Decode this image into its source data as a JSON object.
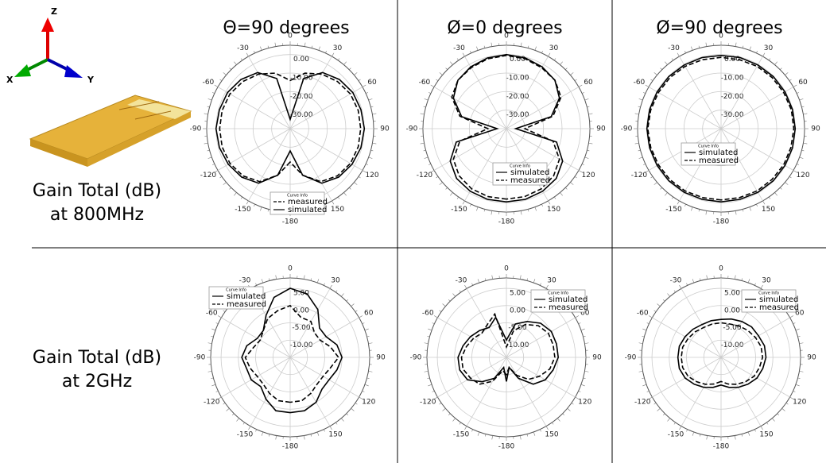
{
  "row_labels": [
    [
      "Gain Total (dB)",
      "at 800MHz"
    ],
    [
      "Gain Total (dB)",
      "at 2GHz"
    ]
  ],
  "axes_icon": {
    "z": "Z",
    "x": "X",
    "y": "Y"
  },
  "chart_data": [
    {
      "type": "polar",
      "title": "Θ=90 degrees",
      "legend_title": "Curve Info",
      "x": [
        -180,
        -165,
        -150,
        -135,
        -120,
        -105,
        -90,
        -75,
        -60,
        -45,
        -30,
        -15,
        0,
        15,
        30,
        45,
        60,
        75,
        90,
        105,
        120,
        135,
        150,
        165
      ],
      "rlim": [
        -40,
        5
      ],
      "rticks": [
        {
          "value": 0,
          "label": "0.00"
        },
        {
          "value": -10,
          "label": "-10.00"
        },
        {
          "value": -20,
          "label": "-20.00"
        },
        {
          "value": -30,
          "label": "-30.00"
        }
      ],
      "angle_ticks": [
        0,
        30,
        60,
        90,
        120,
        150,
        -180,
        -150,
        -120,
        -90,
        -60,
        -30
      ],
      "series": [
        {
          "name": "measured",
          "color": "#000000",
          "dashed": true,
          "values": [
            -22,
            -14,
            -7,
            -4,
            -2.5,
            -2,
            -2,
            -2,
            -2.5,
            -4,
            -6,
            -9,
            -14,
            -9,
            -6,
            -4,
            -2.5,
            -2,
            -2,
            -2,
            -2.5,
            -4,
            -7,
            -14
          ]
        },
        {
          "name": "simulated",
          "color": "#000000",
          "dashed": false,
          "values": [
            -28,
            -14,
            -6,
            -3,
            -1.5,
            -0.5,
            0,
            -0.5,
            -1,
            -2.5,
            -5,
            -12,
            -35,
            -12,
            -5,
            -2.5,
            -1,
            -0.5,
            0,
            -0.5,
            -1.5,
            -3,
            -6,
            -14
          ]
        }
      ]
    },
    {
      "type": "polar",
      "title": "Ø=0 degrees",
      "legend_title": "Curve Info",
      "x": [
        -180,
        -165,
        -150,
        -135,
        -120,
        -105,
        -90,
        -75,
        -60,
        -45,
        -30,
        -15,
        0,
        15,
        30,
        45,
        60,
        75,
        90,
        105,
        120,
        135,
        150,
        165
      ],
      "rlim": [
        -40,
        5
      ],
      "rticks": [
        {
          "value": 0,
          "label": "0.00"
        },
        {
          "value": -10,
          "label": "-10.00"
        },
        {
          "value": -20,
          "label": "-20.00"
        },
        {
          "value": -30,
          "label": "-30.00"
        }
      ],
      "angle_ticks": [
        0,
        30,
        60,
        90,
        120,
        150,
        -180,
        -150,
        -120,
        -90,
        -60,
        -30
      ],
      "series": [
        {
          "name": "simulated",
          "color": "#000000",
          "dashed": false,
          "values": [
            -0.5,
            -0.5,
            -1,
            -2,
            -5,
            -12,
            -35,
            -15,
            -7,
            -3,
            -1.5,
            -0.5,
            0,
            -0.5,
            -1.5,
            -3,
            -7,
            -15,
            -35,
            -12,
            -5,
            -2,
            -1,
            -0.5
          ]
        },
        {
          "name": "measured",
          "color": "#000000",
          "dashed": true,
          "values": [
            -2,
            -2,
            -2.5,
            -4,
            -7,
            -14,
            -30,
            -14,
            -6,
            -3,
            -2,
            -1,
            -0.5,
            -1,
            -2,
            -3,
            -6,
            -14,
            -30,
            -14,
            -7,
            -4,
            -2.5,
            -2
          ]
        }
      ]
    },
    {
      "type": "polar",
      "title": "Ø=90 degrees",
      "legend_title": "Curve Info",
      "x": [
        -180,
        -165,
        -150,
        -135,
        -120,
        -105,
        -90,
        -75,
        -60,
        -45,
        -30,
        -15,
        0,
        15,
        30,
        45,
        60,
        75,
        90,
        105,
        120,
        135,
        150,
        165
      ],
      "rlim": [
        -40,
        5
      ],
      "rticks": [
        {
          "value": 0,
          "label": "0.00"
        },
        {
          "value": -10,
          "label": "-10.00"
        },
        {
          "value": -20,
          "label": "-20.00"
        },
        {
          "value": -30,
          "label": "-30.00"
        }
      ],
      "angle_ticks": [
        0,
        30,
        60,
        90,
        120,
        150,
        -180,
        -150,
        -120,
        -90,
        -60,
        -30
      ],
      "series": [
        {
          "name": "simulated",
          "color": "#000000",
          "dashed": false,
          "values": [
            -0.5,
            -0.5,
            -0.3,
            -0.2,
            -0.2,
            -0.1,
            0,
            -0.1,
            -0.2,
            -0.2,
            -0.3,
            -0.3,
            -0.5,
            -0.3,
            -0.3,
            -0.2,
            -0.2,
            -0.1,
            0,
            -0.1,
            -0.2,
            -0.2,
            -0.3,
            -0.5
          ]
        },
        {
          "name": "measured",
          "color": "#000000",
          "dashed": true,
          "values": [
            -1.5,
            -1.5,
            -1.2,
            -1,
            -1,
            -0.8,
            -0.5,
            -0.8,
            -1,
            -1,
            -1.2,
            -1.5,
            -1.5,
            -1.5,
            -1.2,
            -1,
            -1,
            -0.8,
            -0.8,
            -1,
            -1,
            -1.2,
            -1.2,
            -1.5
          ]
        }
      ]
    },
    {
      "type": "polar",
      "legend_title": "Curve Info",
      "x": [
        -180,
        -165,
        -150,
        -135,
        -120,
        -105,
        -90,
        -75,
        -60,
        -45,
        -30,
        -15,
        0,
        15,
        30,
        45,
        60,
        75,
        90,
        105,
        120,
        135,
        150,
        165
      ],
      "rlim": [
        -15,
        8
      ],
      "rticks": [
        {
          "value": 5,
          "label": "5.00"
        },
        {
          "value": 0,
          "label": "0.00"
        },
        {
          "value": -5,
          "label": "-5.00"
        },
        {
          "value": -10,
          "label": "-10.00"
        }
      ],
      "angle_ticks": [
        0,
        30,
        60,
        90,
        120,
        150,
        -180,
        -150,
        -120,
        -90,
        -60,
        -30
      ],
      "series": [
        {
          "name": "simulated",
          "color": "#000000",
          "dashed": false,
          "values": [
            1,
            1,
            -1,
            -3,
            -2,
            -2,
            -1,
            -2,
            -4,
            -4,
            -1,
            3,
            5,
            4,
            1,
            -3,
            -3,
            -1,
            0,
            -1,
            -2,
            -2,
            0,
            1
          ]
        },
        {
          "name": "measured",
          "color": "#000000",
          "dashed": true,
          "values": [
            -2,
            -2,
            -3,
            -4,
            -4,
            -3,
            -2,
            -4,
            -5,
            -4,
            -2,
            -1,
            0,
            -3,
            -3,
            -5,
            -5,
            -3,
            -1,
            -3,
            -4,
            -4,
            -3,
            -2
          ]
        }
      ]
    },
    {
      "type": "polar",
      "legend_title": "Curve Info",
      "x": [
        -180,
        -165,
        -150,
        -135,
        -120,
        -105,
        -90,
        -75,
        -60,
        -45,
        -30,
        -15,
        0,
        15,
        30,
        45,
        60,
        75,
        90,
        105,
        120,
        135,
        150,
        165
      ],
      "rlim": [
        -15,
        8
      ],
      "rticks": [
        {
          "value": 5,
          "label": "5.00"
        },
        {
          "value": 0,
          "label": "0.00"
        },
        {
          "value": -5,
          "label": "-5.00"
        },
        {
          "value": -10,
          "label": "-10.00"
        }
      ],
      "angle_ticks": [
        0,
        30,
        60,
        90,
        120,
        150,
        -180,
        -150,
        -120,
        -90,
        -60,
        -30
      ],
      "series": [
        {
          "name": "simulated",
          "color": "#000000",
          "dashed": false,
          "values": [
            -8,
            -12,
            -8,
            -5,
            -2,
            -1,
            -1,
            -2,
            -3,
            -4,
            -5,
            -3,
            -10,
            -5,
            -3,
            -1,
            0,
            0,
            0,
            -1,
            -2,
            -4,
            -8,
            -12
          ]
        },
        {
          "name": "measured",
          "color": "#000000",
          "dashed": true,
          "values": [
            -10,
            -11,
            -7,
            -4,
            -3,
            -2,
            -2,
            -3,
            -4,
            -5,
            -4,
            -2,
            -12,
            -7,
            -4,
            -2,
            -1,
            -1,
            -1,
            -2,
            -4,
            -6,
            -9,
            -12
          ]
        }
      ]
    },
    {
      "type": "polar",
      "legend_title": "Curve Info",
      "x": [
        -180,
        -165,
        -150,
        -135,
        -120,
        -105,
        -90,
        -75,
        -60,
        -45,
        -30,
        -15,
        0,
        15,
        30,
        45,
        60,
        75,
        90,
        105,
        120,
        135,
        150,
        165
      ],
      "rlim": [
        -15,
        8
      ],
      "rticks": [
        {
          "value": 5,
          "label": "5.00"
        },
        {
          "value": 0,
          "label": "0.00"
        },
        {
          "value": -5,
          "label": "-5.00"
        },
        {
          "value": -10,
          "label": "-10.00"
        }
      ],
      "angle_ticks": [
        0,
        30,
        60,
        90,
        120,
        150,
        -180,
        -150,
        -120,
        -90,
        -60,
        -30
      ],
      "series": [
        {
          "name": "simulated",
          "color": "#000000",
          "dashed": false,
          "values": [
            -7,
            -6,
            -5,
            -4,
            -3,
            -2.5,
            -2.5,
            -2.5,
            -3,
            -3.5,
            -4,
            -4,
            -4,
            -3.5,
            -3,
            -2.5,
            -2.5,
            -2,
            -2,
            -2.5,
            -3,
            -4,
            -5,
            -6
          ]
        },
        {
          "name": "measured",
          "color": "#000000",
          "dashed": true,
          "values": [
            -8,
            -7,
            -6,
            -5,
            -4,
            -3.5,
            -3.5,
            -3.5,
            -4,
            -4.5,
            -5,
            -5,
            -5,
            -5,
            -4.5,
            -4,
            -3.5,
            -3,
            -3,
            -3.5,
            -4,
            -5,
            -6,
            -7
          ]
        }
      ]
    }
  ]
}
